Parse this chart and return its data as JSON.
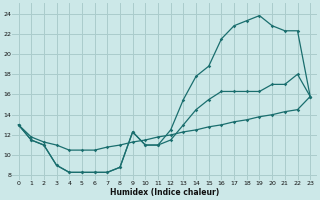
{
  "xlabel": "Humidex (Indice chaleur)",
  "xlim": [
    -0.5,
    23.5
  ],
  "ylim": [
    7.5,
    25
  ],
  "xticks": [
    0,
    1,
    2,
    3,
    4,
    5,
    6,
    7,
    8,
    9,
    10,
    11,
    12,
    13,
    14,
    15,
    16,
    17,
    18,
    19,
    20,
    21,
    22,
    23
  ],
  "yticks": [
    8,
    10,
    12,
    14,
    16,
    18,
    20,
    22,
    24
  ],
  "background_color": "#cce8e8",
  "grid_color": "#aacccc",
  "line_color": "#1a6e6e",
  "curve1_x": [
    0,
    1,
    2,
    3,
    4,
    5,
    6,
    7,
    8,
    9,
    10,
    11,
    12,
    13,
    14,
    15,
    16,
    17,
    18,
    19,
    20,
    21,
    22,
    23
  ],
  "curve1_y": [
    13.0,
    11.5,
    11.0,
    9.0,
    8.3,
    8.3,
    8.3,
    8.3,
    8.8,
    12.3,
    11.0,
    11.0,
    12.5,
    15.5,
    17.8,
    18.8,
    21.5,
    22.8,
    23.3,
    23.8,
    22.8,
    22.3,
    22.3,
    15.8
  ],
  "curve2_x": [
    0,
    1,
    2,
    3,
    4,
    5,
    6,
    7,
    8,
    9,
    10,
    11,
    12,
    13,
    14,
    15,
    16,
    17,
    18,
    19,
    20,
    21,
    22,
    23
  ],
  "curve2_y": [
    13.0,
    11.5,
    11.0,
    9.0,
    8.3,
    8.3,
    8.3,
    8.3,
    8.8,
    12.3,
    11.0,
    11.0,
    11.5,
    13.0,
    14.5,
    15.5,
    16.3,
    16.3,
    16.3,
    16.3,
    17.0,
    17.0,
    18.0,
    15.8
  ],
  "curve3_x": [
    0,
    1,
    2,
    3,
    4,
    5,
    6,
    7,
    8,
    9,
    10,
    11,
    12,
    13,
    14,
    15,
    16,
    17,
    18,
    19,
    20,
    21,
    22,
    23
  ],
  "curve3_y": [
    13.0,
    11.8,
    11.3,
    11.0,
    10.5,
    10.5,
    10.5,
    10.8,
    11.0,
    11.3,
    11.5,
    11.8,
    12.0,
    12.3,
    12.5,
    12.8,
    13.0,
    13.3,
    13.5,
    13.8,
    14.0,
    14.3,
    14.5,
    15.8
  ]
}
